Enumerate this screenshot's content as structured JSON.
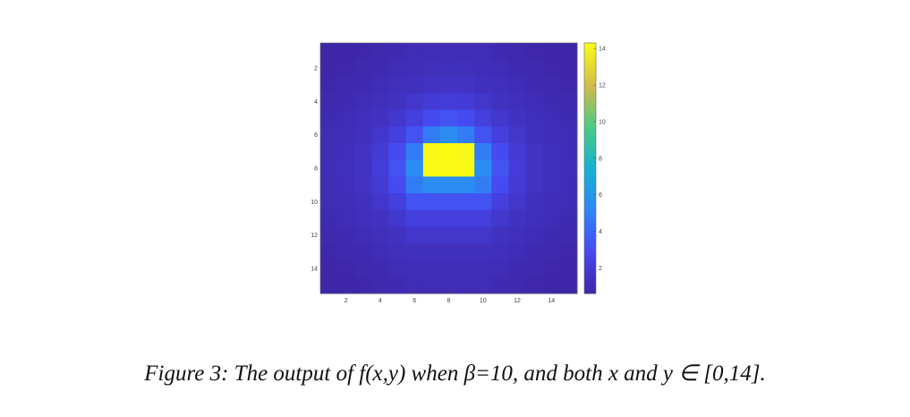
{
  "chart_data": {
    "type": "heatmap",
    "title": "",
    "xlabel": "",
    "ylabel": "",
    "x_ticks": [
      2,
      4,
      6,
      8,
      10,
      12,
      14
    ],
    "y_ticks": [
      2,
      4,
      6,
      8,
      10,
      12,
      14
    ],
    "colorbar_ticks": [
      2,
      4,
      6,
      8,
      10,
      12,
      14
    ],
    "xlim": [
      0.5,
      15.5
    ],
    "ylim": [
      0.5,
      15.5
    ],
    "clim": [
      0.6,
      14.3
    ],
    "colormap": "parula",
    "y_direction": "reverse",
    "grid": false,
    "colorbar": "right",
    "values": [
      [
        0.6,
        0.6,
        0.7,
        0.8,
        0.9,
        1.0,
        1.0,
        1.1,
        1.0,
        1.0,
        0.9,
        0.8,
        0.7,
        0.6,
        0.6
      ],
      [
        0.6,
        0.7,
        0.8,
        0.9,
        1.0,
        1.1,
        1.2,
        1.2,
        1.2,
        1.1,
        1.0,
        0.9,
        0.8,
        0.7,
        0.6
      ],
      [
        0.7,
        0.8,
        0.9,
        1.0,
        1.2,
        1.3,
        1.5,
        1.5,
        1.5,
        1.3,
        1.2,
        1.0,
        0.9,
        0.8,
        0.7
      ],
      [
        0.8,
        0.9,
        1.0,
        1.2,
        1.4,
        1.7,
        2.0,
        2.1,
        2.0,
        1.7,
        1.4,
        1.2,
        1.0,
        0.9,
        0.8
      ],
      [
        0.9,
        1.0,
        1.2,
        1.4,
        1.8,
        2.3,
        3.0,
        3.3,
        3.0,
        2.3,
        1.8,
        1.4,
        1.2,
        1.0,
        0.9
      ],
      [
        1.0,
        1.1,
        1.3,
        1.7,
        2.3,
        3.3,
        4.8,
        5.5,
        4.8,
        3.3,
        2.3,
        1.7,
        1.3,
        1.1,
        1.0
      ],
      [
        1.0,
        1.2,
        1.5,
        2.0,
        3.0,
        4.8,
        14.2,
        14.3,
        14.2,
        4.8,
        3.0,
        2.0,
        1.5,
        1.2,
        1.0
      ],
      [
        1.1,
        1.2,
        1.5,
        2.1,
        3.3,
        5.5,
        14.3,
        14.3,
        14.3,
        5.5,
        3.3,
        2.1,
        1.5,
        1.2,
        1.1
      ],
      [
        1.0,
        1.2,
        1.5,
        2.0,
        3.0,
        4.8,
        5.5,
        5.5,
        5.5,
        4.8,
        3.0,
        2.0,
        1.5,
        1.2,
        1.0
      ],
      [
        1.0,
        1.1,
        1.3,
        1.7,
        2.3,
        3.3,
        3.3,
        3.3,
        3.3,
        3.3,
        2.3,
        1.7,
        1.3,
        1.1,
        1.0
      ],
      [
        0.9,
        1.0,
        1.2,
        1.4,
        1.8,
        2.3,
        2.3,
        2.3,
        2.3,
        2.3,
        1.8,
        1.4,
        1.2,
        1.0,
        0.9
      ],
      [
        0.8,
        0.9,
        1.0,
        1.2,
        1.4,
        1.7,
        1.7,
        1.7,
        1.7,
        1.7,
        1.4,
        1.2,
        1.0,
        0.9,
        0.8
      ],
      [
        0.7,
        0.8,
        0.9,
        1.0,
        1.2,
        1.3,
        1.3,
        1.3,
        1.3,
        1.3,
        1.2,
        1.0,
        0.9,
        0.8,
        0.7
      ],
      [
        0.6,
        0.7,
        0.8,
        0.9,
        1.0,
        1.1,
        1.1,
        1.1,
        1.1,
        1.1,
        1.0,
        0.9,
        0.8,
        0.7,
        0.6
      ],
      [
        0.6,
        0.6,
        0.7,
        0.8,
        0.9,
        1.0,
        1.0,
        1.0,
        1.0,
        1.0,
        0.9,
        0.8,
        0.7,
        0.6,
        0.6
      ]
    ]
  },
  "colormap_stops": [
    "#3e26a8",
    "#4748f1",
    "#2e87f7",
    "#17b1cf",
    "#48cb86",
    "#d2ba4b",
    "#f9fb15"
  ],
  "caption": "Figure 3:  The output of f(x,y) when β=10, and both x and y ∈ [0,14]."
}
